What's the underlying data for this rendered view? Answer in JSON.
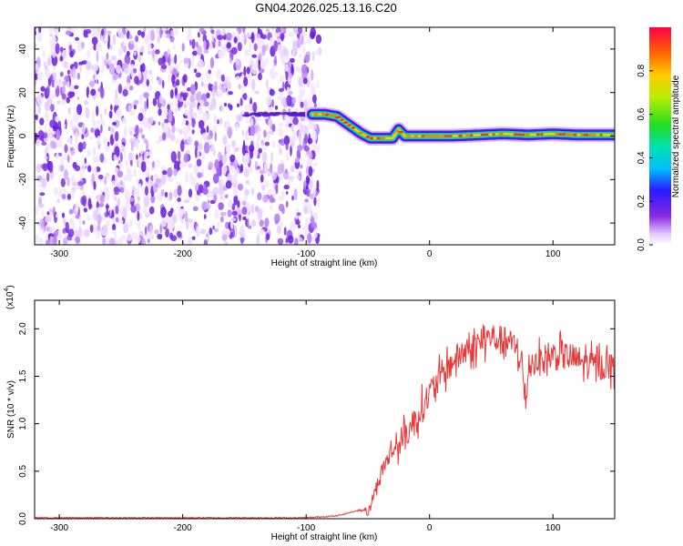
{
  "title": "GN04.2026.025.13.16.C20",
  "chart_data": [
    {
      "type": "heatmap",
      "xlabel": "Height of straight line (km)",
      "ylabel": "Frequency (Hz)",
      "xlim": [
        -320,
        150
      ],
      "ylim": [
        -50,
        50
      ],
      "xticks": [
        -300,
        -200,
        -100,
        0,
        100
      ],
      "yticks": [
        -40,
        -20,
        0,
        20,
        40
      ],
      "noise_region_x": [
        -320,
        -90
      ],
      "ridge": {
        "x": [
          -95,
          -85,
          -75,
          -65,
          -55,
          -48,
          -40,
          -30,
          -25,
          -20,
          -10,
          0,
          20,
          40,
          60,
          80,
          100,
          120,
          150
        ],
        "y": [
          10,
          10,
          9,
          5,
          1,
          -1,
          -1,
          -1,
          3,
          0,
          0,
          0,
          0,
          0.5,
          1,
          0.5,
          1,
          0.5,
          0.5
        ]
      },
      "colorbar": {
        "label": "Normalized spectral amplitude",
        "range": [
          0,
          1
        ],
        "ticks": [
          0.0,
          0.2,
          0.4,
          0.6,
          0.8
        ],
        "tick_labels": [
          "0.0",
          "0.2",
          "0.4",
          "0.6",
          "0.8"
        ]
      }
    },
    {
      "type": "line",
      "xlabel": "Height of straight line (km)",
      "ylabel": "SNR (10 * v/v)",
      "multiplier_label": "(x10",
      "multiplier_exp": "4",
      "xlim": [
        -320,
        150
      ],
      "ylim": [
        0,
        2.3
      ],
      "xticks": [
        -300,
        -200,
        -100,
        0,
        100
      ],
      "yticks": [
        0.0,
        0.5,
        1.0,
        1.5,
        2.0
      ],
      "ytick_labels": [
        "0.0",
        "0.5",
        "1.0",
        "1.5",
        "2.0"
      ],
      "series": [
        {
          "name": "SNR",
          "color": "#e83a3a",
          "envelope_x": [
            -320,
            -100,
            -75,
            -60,
            -52,
            -50,
            -45,
            -40,
            -35,
            -30,
            -20,
            -10,
            0,
            10,
            20,
            30,
            40,
            50,
            60,
            70,
            75,
            78,
            80,
            90,
            100,
            110,
            120,
            130,
            140,
            150
          ],
          "envelope_y": [
            0.01,
            0.01,
            0.03,
            0.08,
            0.1,
            0.05,
            0.25,
            0.45,
            0.6,
            0.7,
            0.85,
            1.05,
            1.3,
            1.5,
            1.65,
            1.75,
            1.82,
            1.9,
            1.85,
            1.8,
            1.6,
            1.1,
            1.6,
            1.65,
            1.7,
            1.7,
            1.65,
            1.6,
            1.6,
            1.58
          ],
          "noise_amp": 0.16
        }
      ]
    }
  ]
}
